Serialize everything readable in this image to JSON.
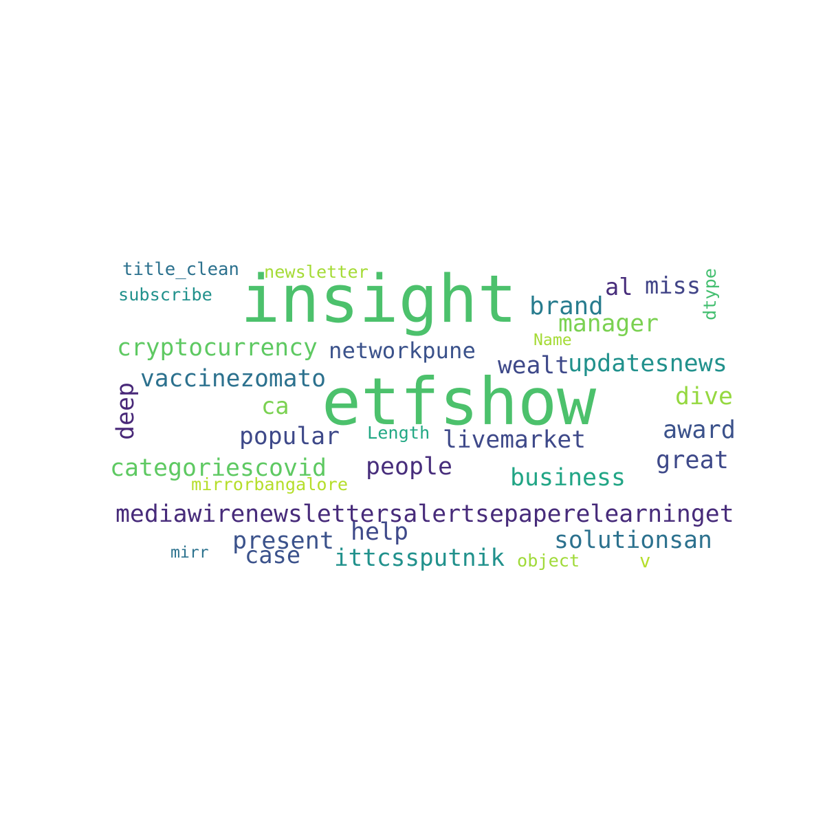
{
  "words": [
    {
      "text": "insight",
      "color": "#4cc16c"
    },
    {
      "text": "etfshow",
      "color": "#4cc16c"
    },
    {
      "text": "mediawirenewslettersalertsepaperelearninget",
      "color": "#472b7a"
    },
    {
      "text": "cryptocurrency",
      "color": "#5ec962"
    },
    {
      "text": "categoriescovid",
      "color": "#5ec962"
    },
    {
      "text": "vaccinezomato",
      "color": "#2c718e"
    },
    {
      "text": "networkpune",
      "color": "#3b528b"
    },
    {
      "text": "updatesnews",
      "color": "#21918c"
    },
    {
      "text": "ittcssputnik",
      "color": "#21918c"
    },
    {
      "text": "solutionsan",
      "color": "#2c718e"
    },
    {
      "text": "livemarket",
      "color": "#3e4989"
    },
    {
      "text": "business",
      "color": "#21a585"
    },
    {
      "text": "popular",
      "color": "#3e4989"
    },
    {
      "text": "people",
      "color": "#472d7b"
    },
    {
      "text": "present",
      "color": "#3b528b"
    },
    {
      "text": "case",
      "color": "#3b528b"
    },
    {
      "text": "help",
      "color": "#3e4989"
    },
    {
      "text": "manager",
      "color": "#7ad151"
    },
    {
      "text": "brand",
      "color": "#287c8e"
    },
    {
      "text": "al",
      "color": "#472d7b"
    },
    {
      "text": "miss",
      "color": "#414487"
    },
    {
      "text": "wealt",
      "color": "#3e4989"
    },
    {
      "text": "dive",
      "color": "#95d840"
    },
    {
      "text": "award",
      "color": "#3b528b"
    },
    {
      "text": "great",
      "color": "#3e4989"
    },
    {
      "text": "ca",
      "color": "#7ad151"
    },
    {
      "text": "deep",
      "color": "#482878"
    },
    {
      "text": "dtype",
      "color": "#44bf70"
    },
    {
      "text": "title_clean",
      "color": "#2c718e"
    },
    {
      "text": "subscribe",
      "color": "#21918c"
    },
    {
      "text": "newsletter",
      "color": "#a5db36"
    },
    {
      "text": "Name",
      "color": "#a5db36"
    },
    {
      "text": "Length",
      "color": "#22a884"
    },
    {
      "text": "mirrorbangalore",
      "color": "#b5de2b"
    },
    {
      "text": "mirr",
      "color": "#2c728e"
    },
    {
      "text": "object",
      "color": "#a0da39"
    },
    {
      "text": "v",
      "color": "#b5de2b"
    }
  ]
}
